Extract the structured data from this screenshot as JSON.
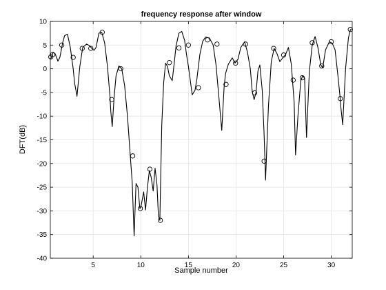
{
  "chart_data": {
    "type": "line",
    "title": "frequency response after window",
    "xlabel": "Sample number",
    "ylabel": "DFT(dB)",
    "xlim": [
      0.5,
      32.2
    ],
    "ylim": [
      -40,
      10
    ],
    "xticks": [
      5,
      10,
      15,
      20,
      25,
      30
    ],
    "yticks": [
      10,
      5,
      0,
      -5,
      -10,
      -15,
      -20,
      -25,
      -30,
      -35,
      -40
    ],
    "grid": true,
    "series": [
      {
        "style": "line",
        "color": "#000000",
        "x": [
          0.55,
          0.8,
          1.0,
          1.3,
          1.5,
          1.8,
          2.0,
          2.3,
          2.6,
          2.9,
          3.05,
          3.3,
          3.6,
          3.9,
          4.3,
          4.6,
          4.9,
          5.1,
          5.3,
          5.6,
          5.9,
          6.2,
          6.5,
          6.75,
          6.85,
          7.0,
          7.2,
          7.4,
          7.7,
          8.0,
          8.3,
          8.6,
          8.9,
          9.1,
          9.3,
          9.5,
          9.7,
          9.9,
          10.0,
          10.3,
          10.5,
          10.7,
          10.9,
          11.1,
          11.3,
          11.5,
          11.7,
          11.85,
          12.0,
          12.1,
          12.2,
          12.4,
          12.6,
          12.8,
          13.0,
          13.3,
          13.5,
          13.7,
          14.0,
          14.3,
          14.6,
          14.8,
          15.0,
          15.4,
          15.7,
          15.9,
          16.2,
          16.5,
          16.8,
          17.2,
          17.6,
          17.9,
          18.2,
          18.5,
          18.75,
          18.9,
          19.2,
          19.6,
          19.9,
          20.2,
          20.5,
          20.9,
          21.2,
          21.5,
          21.7,
          21.9,
          22.1,
          22.3,
          22.5,
          22.75,
          22.95,
          23.1,
          23.4,
          23.7,
          24.0,
          24.3,
          24.6,
          24.9,
          25.2,
          25.5,
          25.8,
          26.1,
          26.25,
          26.5,
          26.8,
          27.0,
          27.2,
          27.4,
          27.7,
          28.0,
          28.3,
          28.6,
          28.9,
          29.1,
          29.4,
          29.8,
          30.1,
          30.4,
          30.7,
          30.9,
          31.0,
          31.2,
          31.5,
          31.8,
          32.0,
          32.1
        ],
        "y": [
          2.0,
          3.5,
          3.2,
          1.6,
          2.4,
          5.5,
          7.0,
          7.3,
          4.5,
          0.0,
          -3.0,
          -5.8,
          0.5,
          4.5,
          5.2,
          4.9,
          4.2,
          3.9,
          4.5,
          7.5,
          7.7,
          5.5,
          0.5,
          -5.5,
          -9.0,
          -12.2,
          -6.0,
          -1.5,
          0.6,
          0.0,
          -3.5,
          -10.0,
          -18.5,
          -24.0,
          -35.3,
          -24.2,
          -25.0,
          -29.5,
          -29.3,
          -26.0,
          -29.8,
          -25.0,
          -21.5,
          -23.0,
          -25.8,
          -21.0,
          -24.5,
          -31.0,
          -32.0,
          -22.0,
          -12.0,
          -3.0,
          1.2,
          0.5,
          -1.5,
          -2.5,
          1.0,
          4.8,
          7.5,
          7.9,
          6.0,
          3.0,
          0.5,
          -5.5,
          -4.5,
          -2.0,
          3.0,
          5.8,
          6.7,
          6.5,
          5.0,
          0.8,
          -6.0,
          -13.0,
          -3.8,
          -1.0,
          1.0,
          2.3,
          1.2,
          2.0,
          4.5,
          5.7,
          3.5,
          0.0,
          -4.8,
          -6.5,
          -5.0,
          -0.5,
          0.8,
          -4.5,
          -14.0,
          -23.5,
          -8.0,
          1.5,
          4.3,
          3.2,
          1.5,
          2.3,
          3.0,
          4.5,
          1.0,
          -7.0,
          -18.2,
          -10.0,
          -2.5,
          -1.5,
          -2.0,
          -14.5,
          -0.5,
          5.0,
          6.8,
          4.5,
          0.8,
          0.2,
          4.0,
          5.7,
          5.4,
          4.0,
          -1.5,
          -5.5,
          -8.0,
          -11.8,
          0.0,
          6.5,
          8.2,
          8.4
        ]
      },
      {
        "style": "markers",
        "marker": "circle",
        "color": "#000000",
        "x": [
          0.55,
          0.75,
          1.7,
          2.9,
          3.85,
          4.75,
          5.95,
          6.95,
          7.9,
          9.15,
          9.95,
          10.95,
          12.05,
          13.0,
          14.0,
          15.0,
          16.05,
          17.0,
          18.0,
          18.95,
          19.95,
          21.0,
          21.95,
          22.95,
          23.95,
          25.0,
          26.0,
          26.95,
          28.0,
          29.0,
          30.0,
          30.95,
          32.0
        ],
        "y": [
          2.5,
          3.0,
          5.0,
          2.4,
          4.3,
          4.3,
          7.7,
          -6.5,
          0.0,
          -18.4,
          -29.5,
          -21.2,
          -32.0,
          1.3,
          4.4,
          5.0,
          -4.0,
          6.1,
          5.2,
          -3.3,
          1.2,
          5.2,
          -5.1,
          -19.5,
          4.3,
          2.9,
          -2.4,
          -1.9,
          5.5,
          0.6,
          5.7,
          -6.3,
          8.3
        ]
      }
    ]
  }
}
